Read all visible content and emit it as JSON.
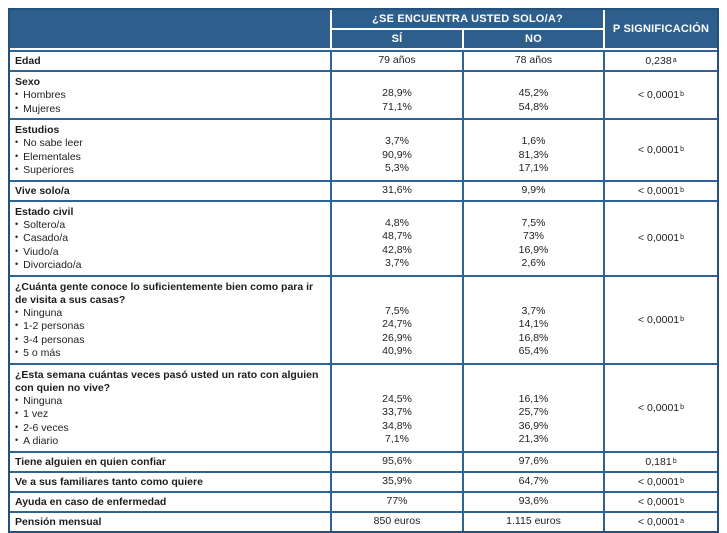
{
  "colors": {
    "header_bg": "#2e5e8c",
    "border_dark": "#24507c",
    "line": "#2e6395",
    "text": "#1d1d1f"
  },
  "header": {
    "question": "¿SE ENCUENTRA USTED SOLO/A?",
    "yes": "SÍ",
    "no": "NO",
    "p": "P SIGNIFICACIÓN"
  },
  "rows": [
    {
      "label": "Edad",
      "yes": "79 años",
      "no": "78 años",
      "p": "0,238",
      "p_sup": "a"
    },
    {
      "label": "Sexo",
      "p": "< 0,0001",
      "p_sup": "b",
      "items": [
        {
          "label": "Hombres",
          "yes": "28,9%",
          "no": "45,2%"
        },
        {
          "label": "Mujeres",
          "yes": "71,1%",
          "no": "54,8%"
        }
      ]
    },
    {
      "label": "Estudios",
      "p": "< 0,0001",
      "p_sup": "b",
      "items": [
        {
          "label": "No sabe leer",
          "yes": "3,7%",
          "no": "1,6%"
        },
        {
          "label": "Elementales",
          "yes": "90,9%",
          "no": "81,3%"
        },
        {
          "label": "Superiores",
          "yes": "5,3%",
          "no": "17,1%"
        }
      ]
    },
    {
      "label": "Vive solo/a",
      "yes": "31,6%",
      "no": "9,9%",
      "p": "< 0,0001",
      "p_sup": "b"
    },
    {
      "label": "Estado civil",
      "p": "< 0,0001",
      "p_sup": "b",
      "items": [
        {
          "label": "Soltero/a",
          "yes": "4,8%",
          "no": "7,5%"
        },
        {
          "label": "Casado/a",
          "yes": "48,7%",
          "no": "73%"
        },
        {
          "label": "Viudo/a",
          "yes": "42,8%",
          "no": "16,9%"
        },
        {
          "label": "Divorciado/a",
          "yes": "3,7%",
          "no": "2,6%"
        }
      ]
    },
    {
      "label": "¿Cuánta gente conoce lo suficientemente bien como para ir de visita a sus casas?",
      "p": "< 0,0001",
      "p_sup": "b",
      "items": [
        {
          "label": "Ninguna",
          "yes": "7,5%",
          "no": "3,7%"
        },
        {
          "label": "1-2 personas",
          "yes": "24,7%",
          "no": "14,1%"
        },
        {
          "label": "3-4 personas",
          "yes": "26,9%",
          "no": "16,8%"
        },
        {
          "label": "5 o más",
          "yes": "40,9%",
          "no": "65,4%"
        }
      ]
    },
    {
      "label": "¿Esta semana cuántas veces pasó usted un rato con alguien con quien no vive?",
      "p": "< 0,0001",
      "p_sup": "b",
      "items": [
        {
          "label": "Ninguna",
          "yes": "24,5%",
          "no": "16,1%"
        },
        {
          "label": "1 vez",
          "yes": "33,7%",
          "no": "25,7%"
        },
        {
          "label": "2-6 veces",
          "yes": "34,8%",
          "no": "36,9%"
        },
        {
          "label": "A diario",
          "yes": "7,1%",
          "no": "21,3%"
        }
      ]
    },
    {
      "label": "Tiene alguien en quien confiar",
      "yes": "95,6%",
      "no": "97,6%",
      "p": "0,181",
      "p_sup": "b"
    },
    {
      "label": "Ve a sus familiares tanto como quiere",
      "yes": "35,9%",
      "no": "64,7%",
      "p": "< 0,0001",
      "p_sup": "b"
    },
    {
      "label": "Ayuda en caso de enfermedad",
      "yes": "77%",
      "no": "93,6%",
      "p": "< 0,0001",
      "p_sup": "b"
    },
    {
      "label": "Pensión mensual",
      "yes": "850 euros",
      "no": "1.115 euros",
      "p": "< 0,0001",
      "p_sup": "a"
    }
  ]
}
